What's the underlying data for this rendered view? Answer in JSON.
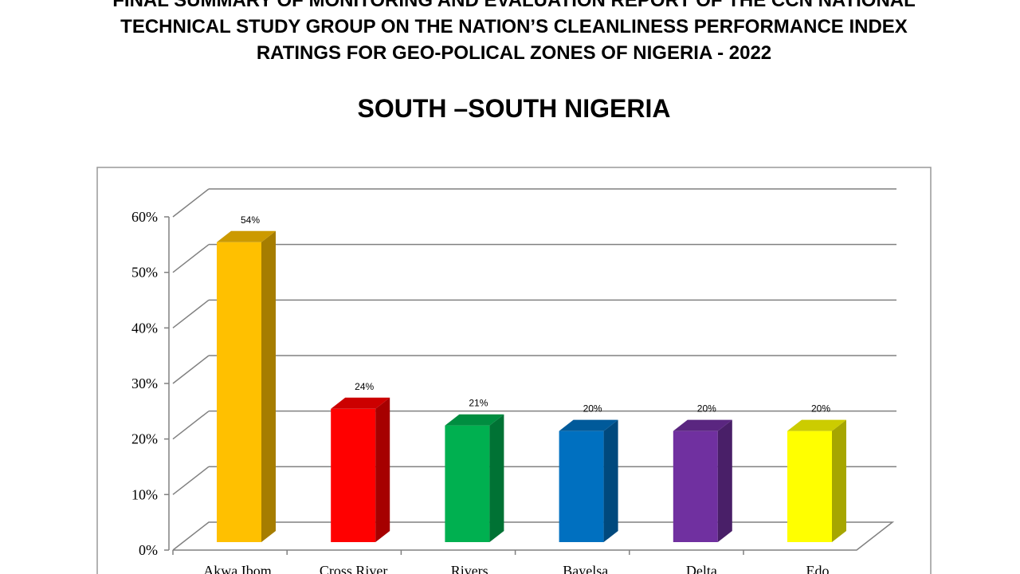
{
  "chart_data": {
    "type": "bar3d",
    "title": [
      "FINAL SUMMARY OF MONITORING AND EVALUATION REPORT OF THE CCN NATIONAL",
      "TECHNICAL STUDY GROUP ON THE NATION’S CLEANLINESS PERFORMANCE INDEX",
      "RATINGS FOR GEO-POLICAL ZONES OF NIGERIA - 2022"
    ],
    "subtitle": "SOUTH –SOUTH NIGERIA",
    "categories": [
      "Akwa Ibom",
      "Cross River",
      "Rivers",
      "Bayelsa",
      "Delta",
      "Edo"
    ],
    "values": [
      54,
      24,
      21,
      20,
      20,
      20
    ],
    "value_labels": [
      "54%",
      "24%",
      "21%",
      "20%",
      "20%",
      "20%"
    ],
    "colors": [
      "#ffc000",
      "#ff0000",
      "#00b050",
      "#0070c0",
      "#7030a0",
      "#ffff00"
    ],
    "ylim": [
      0,
      60
    ],
    "yticks": [
      {
        "value": 0,
        "label": "0%"
      },
      {
        "value": 10,
        "label": "10%"
      },
      {
        "value": 20,
        "label": "20%"
      },
      {
        "value": 30,
        "label": "30%"
      },
      {
        "value": 40,
        "label": "40%"
      },
      {
        "value": 50,
        "label": "50%"
      },
      {
        "value": 60,
        "label": "60%"
      }
    ],
    "grid": true
  }
}
